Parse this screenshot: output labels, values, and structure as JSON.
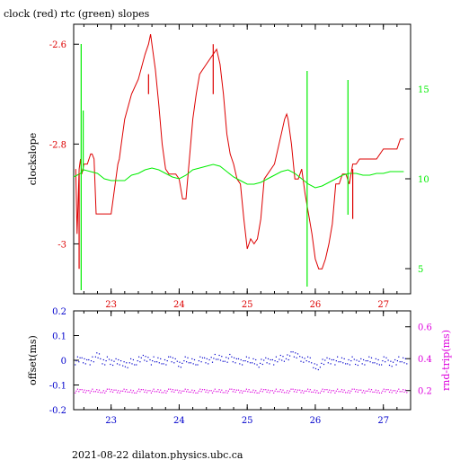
{
  "title": "clock (red) rtc (green) slopes",
  "footer": "2021-08-22  dilaton.physics.ubc.ca",
  "colors": {
    "red": "#dd0000",
    "green": "#00ee00",
    "blue": "#0000cc",
    "magenta": "#dd00dd",
    "black": "#000000"
  },
  "chart_data": [
    {
      "type": "line",
      "panel": "top",
      "xlim": [
        22.45,
        27.4
      ],
      "x_ticks": [
        "23",
        "24",
        "25",
        "26",
        "27"
      ],
      "left_axis": {
        "label": "clockslope",
        "ylim": [
          -3.1,
          -2.56
        ],
        "ticks": [
          "-2.6",
          "-2.8",
          "-3"
        ],
        "tick_values": [
          -2.6,
          -2.8,
          -3.0
        ]
      },
      "right_axis": {
        "label": "",
        "ylim": [
          3.6,
          18.6
        ],
        "ticks": [
          "5",
          "10",
          "15"
        ],
        "tick_values": [
          5,
          10,
          15
        ]
      },
      "series": [
        {
          "color": "red",
          "axis": "left",
          "x": [
            22.48,
            22.5,
            22.53,
            22.55,
            22.57,
            22.6,
            22.65,
            22.7,
            22.72,
            22.75,
            22.78,
            22.8,
            22.85,
            23.0,
            23.1,
            23.12,
            23.15,
            23.2,
            23.3,
            23.4,
            23.5,
            23.55,
            23.58,
            23.6,
            23.65,
            23.7,
            23.75,
            23.8,
            23.85,
            23.9,
            23.95,
            24.0,
            24.05,
            24.1,
            24.15,
            24.2,
            24.25,
            24.3,
            24.4,
            24.5,
            24.55,
            24.6,
            24.65,
            24.7,
            24.75,
            24.8,
            24.85,
            24.9,
            24.95,
            25.0,
            25.05,
            25.1,
            25.15,
            25.2,
            25.25,
            25.3,
            25.4,
            25.5,
            25.55,
            25.58,
            25.6,
            25.65,
            25.7,
            25.75,
            25.8,
            25.85,
            25.9,
            25.95,
            26.0,
            26.05,
            26.1,
            26.15,
            26.2,
            26.25,
            26.3,
            26.35,
            26.4,
            26.45,
            26.5,
            26.55,
            26.6,
            26.65,
            26.7,
            26.8,
            26.9,
            27.0,
            27.1,
            27.2,
            27.25,
            27.3
          ],
          "y": [
            -2.85,
            -2.98,
            -2.85,
            -2.83,
            -2.86,
            -2.84,
            -2.84,
            -2.82,
            -2.82,
            -2.83,
            -2.94,
            -2.94,
            -2.94,
            -2.94,
            -2.84,
            -2.83,
            -2.8,
            -2.75,
            -2.7,
            -2.67,
            -2.62,
            -2.6,
            -2.58,
            -2.6,
            -2.65,
            -2.72,
            -2.8,
            -2.85,
            -2.86,
            -2.86,
            -2.86,
            -2.87,
            -2.91,
            -2.91,
            -2.83,
            -2.75,
            -2.7,
            -2.66,
            -2.64,
            -2.62,
            -2.61,
            -2.64,
            -2.7,
            -2.78,
            -2.82,
            -2.84,
            -2.87,
            -2.88,
            -2.95,
            -3.01,
            -2.99,
            -3.0,
            -2.99,
            -2.95,
            -2.87,
            -2.86,
            -2.84,
            -2.78,
            -2.75,
            -2.74,
            -2.75,
            -2.8,
            -2.87,
            -2.87,
            -2.85,
            -2.9,
            -2.94,
            -2.98,
            -3.03,
            -3.05,
            -3.05,
            -3.03,
            -3.0,
            -2.96,
            -2.88,
            -2.88,
            -2.86,
            -2.86,
            -2.88,
            -2.84,
            -2.84,
            -2.83,
            -2.83,
            -2.83,
            -2.83,
            -2.81,
            -2.81,
            -2.81,
            -2.79,
            -2.79
          ]
        },
        {
          "color": "green",
          "axis": "right",
          "x": [
            22.45,
            22.55,
            22.6,
            22.7,
            22.8,
            22.9,
            23.0,
            23.1,
            23.2,
            23.3,
            23.4,
            23.5,
            23.6,
            23.7,
            23.8,
            23.9,
            24.0,
            24.1,
            24.2,
            24.3,
            24.4,
            24.5,
            24.6,
            24.7,
            24.8,
            24.9,
            25.0,
            25.1,
            25.2,
            25.3,
            25.4,
            25.5,
            25.6,
            25.7,
            25.8,
            25.9,
            26.0,
            26.1,
            26.2,
            26.3,
            26.4,
            26.5,
            26.6,
            26.7,
            26.8,
            26.9,
            27.0,
            27.1,
            27.2,
            27.3
          ],
          "y": [
            10.1,
            10.3,
            10.5,
            10.4,
            10.3,
            10.0,
            9.9,
            9.9,
            9.9,
            10.2,
            10.3,
            10.5,
            10.6,
            10.5,
            10.3,
            10.1,
            10.0,
            10.2,
            10.5,
            10.6,
            10.7,
            10.8,
            10.7,
            10.4,
            10.1,
            9.9,
            9.7,
            9.7,
            9.8,
            10.0,
            10.2,
            10.4,
            10.5,
            10.3,
            10.0,
            9.7,
            9.5,
            9.6,
            9.8,
            10.0,
            10.2,
            10.3,
            10.3,
            10.2,
            10.2,
            10.3,
            10.3,
            10.4,
            10.4,
            10.4
          ]
        }
      ],
      "spikes": [
        {
          "color": "green",
          "axis": "right",
          "x": 22.56,
          "y1": 3.8,
          "y2": 17.5
        },
        {
          "color": "green",
          "axis": "right",
          "x": 22.59,
          "y1": 10.5,
          "y2": 13.8
        },
        {
          "color": "green",
          "axis": "right",
          "x": 25.88,
          "y1": 4.0,
          "y2": 16.0
        },
        {
          "color": "green",
          "axis": "right",
          "x": 26.48,
          "y1": 8.0,
          "y2": 15.5
        },
        {
          "color": "red",
          "axis": "left",
          "x": 22.53,
          "y1": -3.05,
          "y2": -2.86
        },
        {
          "color": "red",
          "axis": "left",
          "x": 23.55,
          "y1": -2.66,
          "y2": -2.7
        },
        {
          "color": "red",
          "axis": "left",
          "x": 24.5,
          "y1": -2.6,
          "y2": -2.7
        },
        {
          "color": "red",
          "axis": "left",
          "x": 26.55,
          "y1": -2.95,
          "y2": -2.85
        }
      ]
    },
    {
      "type": "scatter",
      "panel": "bottom",
      "xlim": [
        22.45,
        27.4
      ],
      "x_ticks": [
        "23",
        "24",
        "25",
        "26",
        "27"
      ],
      "left_axis": {
        "label": "offset(ms)",
        "ylim": [
          -0.2,
          0.2
        ],
        "ticks": [
          "0.2",
          "0.1",
          "0",
          "-0.1",
          "-0.2"
        ],
        "tick_values": [
          0.2,
          0.1,
          0,
          -0.1,
          -0.2
        ]
      },
      "right_axis": {
        "label": "rnd-trip(ms)",
        "ylim": [
          0.08,
          0.7
        ],
        "ticks": [
          "0.6",
          "0.4",
          "0.2"
        ],
        "tick_values": [
          0.6,
          0.4,
          0.2
        ]
      },
      "series": [
        {
          "color": "blue",
          "axis": "left",
          "x": [
            22.5,
            22.6,
            22.7,
            22.8,
            22.9,
            23.0,
            23.1,
            23.2,
            23.3,
            23.4,
            23.5,
            23.6,
            23.7,
            23.8,
            23.9,
            24.0,
            24.1,
            24.2,
            24.3,
            24.4,
            24.5,
            24.6,
            24.7,
            24.8,
            24.9,
            25.0,
            25.1,
            25.2,
            25.3,
            25.4,
            25.5,
            25.6,
            25.7,
            25.8,
            25.9,
            26.0,
            26.1,
            26.2,
            26.3,
            26.4,
            26.5,
            26.6,
            26.7,
            26.8,
            26.9,
            27.0,
            27.1,
            27.2,
            27.3
          ],
          "y": [
            0.0,
            0.0,
            0.0,
            0.02,
            0.0,
            -0.01,
            0.0,
            -0.02,
            0.0,
            0.0,
            0.01,
            0.0,
            0.0,
            0.0,
            0.0,
            -0.01,
            0.0,
            0.0,
            0.0,
            0.0,
            0.01,
            0.01,
            0.01,
            0.0,
            0.0,
            0.0,
            0.0,
            -0.01,
            0.0,
            0.0,
            0.01,
            0.02,
            0.02,
            0.01,
            0.0,
            -0.02,
            -0.01,
            0.0,
            0.0,
            0.0,
            0.0,
            -0.01,
            0.0,
            0.0,
            0.0,
            0.0,
            -0.01,
            0.0,
            0.0
          ]
        },
        {
          "color": "magenta",
          "axis": "right",
          "x": [
            22.5,
            22.6,
            22.7,
            22.8,
            22.9,
            23.0,
            23.1,
            23.2,
            23.3,
            23.4,
            23.5,
            23.6,
            23.7,
            23.8,
            23.9,
            24.0,
            24.1,
            24.2,
            24.3,
            24.4,
            24.5,
            24.6,
            24.7,
            24.8,
            24.9,
            25.0,
            25.1,
            25.2,
            25.3,
            25.4,
            25.5,
            25.6,
            25.7,
            25.8,
            25.9,
            26.0,
            26.1,
            26.2,
            26.3,
            26.4,
            26.5,
            26.6,
            26.7,
            26.8,
            26.9,
            27.0,
            27.1,
            27.2,
            27.3
          ],
          "y": [
            0.2,
            0.2,
            0.2,
            0.2,
            0.2,
            0.2,
            0.2,
            0.2,
            0.2,
            0.2,
            0.2,
            0.2,
            0.2,
            0.2,
            0.2,
            0.2,
            0.2,
            0.2,
            0.2,
            0.2,
            0.2,
            0.2,
            0.2,
            0.2,
            0.2,
            0.2,
            0.2,
            0.2,
            0.2,
            0.2,
            0.2,
            0.2,
            0.2,
            0.2,
            0.2,
            0.2,
            0.2,
            0.2,
            0.2,
            0.2,
            0.2,
            0.2,
            0.2,
            0.2,
            0.2,
            0.2,
            0.2,
            0.2,
            0.2
          ]
        }
      ]
    }
  ]
}
